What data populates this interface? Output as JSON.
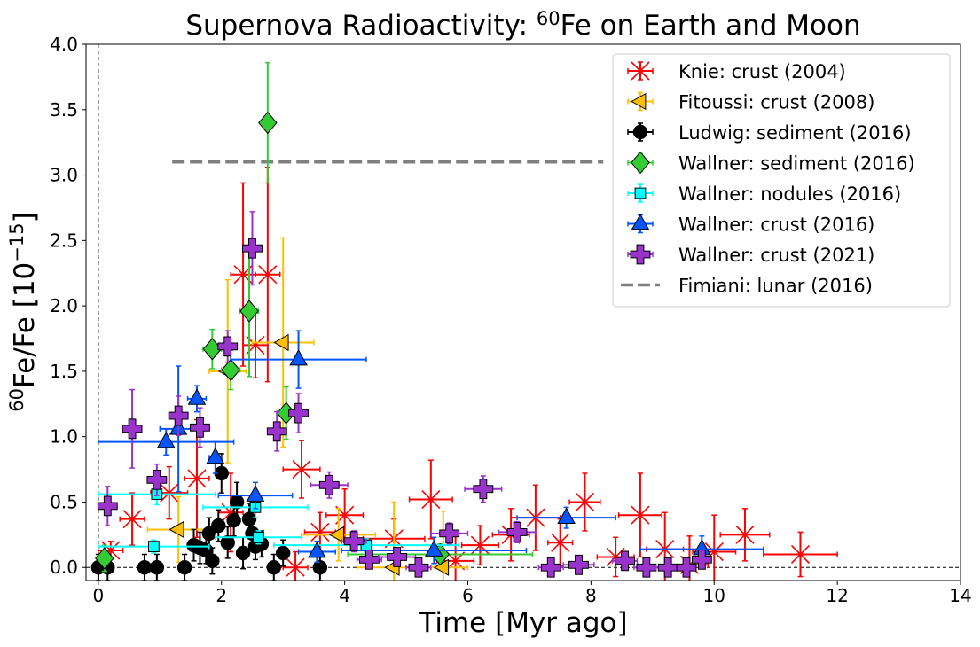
{
  "chart_data": {
    "type": "scatter",
    "title_main": "Supernova Radioactivity: ",
    "title_sup": "60",
    "title_rest": "Fe on Earth and Moon",
    "xlabel": "Time [Myr ago]",
    "ylabel_sup": "60",
    "ylabel_main": "Fe/Fe  [10",
    "ylabel_exp": "−15",
    "ylabel_end": "]",
    "xlim": [
      -0.2,
      14
    ],
    "ylim": [
      -0.1,
      4.0
    ],
    "xticks": [
      0,
      2,
      4,
      6,
      8,
      10,
      12,
      14
    ],
    "yticks": [
      0.0,
      0.5,
      1.0,
      1.5,
      2.0,
      2.5,
      3.0,
      3.5,
      4.0
    ],
    "xtick_labels": [
      "0",
      "2",
      "4",
      "6",
      "8",
      "10",
      "12",
      "14"
    ],
    "ytick_labels": [
      "0.0",
      "0.5",
      "1.0",
      "1.5",
      "2.0",
      "2.5",
      "3.0",
      "3.5",
      "4.0"
    ],
    "legend_position": "top-right",
    "reference_lines": {
      "x": 0,
      "y": 0
    },
    "series": [
      {
        "name": "Knie: crust (2004)",
        "marker": "x",
        "color": "#ff0000",
        "points": [
          {
            "x": 0.2,
            "y": 0.13,
            "xerr": 0.2,
            "yerr": 0.07
          },
          {
            "x": 0.55,
            "y": 0.37,
            "xerr": 0.2,
            "yerr": 0.2
          },
          {
            "x": 1.15,
            "y": 0.57,
            "xerr": 0.3,
            "yerr": 0.2
          },
          {
            "x": 1.6,
            "y": 0.68,
            "xerr": 0.2,
            "yerr": 0.45
          },
          {
            "x": 2.15,
            "y": 0.42,
            "xerr": 0.2,
            "yerr": 0.3
          },
          {
            "x": 2.35,
            "y": 2.24,
            "xerr": 0.2,
            "yerr": 0.7
          },
          {
            "x": 2.55,
            "y": 1.7,
            "xerr": 0.2,
            "yerr": 0.25
          },
          {
            "x": 2.75,
            "y": 2.24,
            "xerr": 0.2,
            "yerr": 0.82
          },
          {
            "x": 3.2,
            "y": 0.0,
            "xerr": 0.2,
            "yerr": 0.12
          },
          {
            "x": 3.3,
            "y": 0.75,
            "xerr": 0.3,
            "yerr": 0.22
          },
          {
            "x": 3.6,
            "y": 0.27,
            "xerr": 0.25,
            "yerr": 0.15
          },
          {
            "x": 4.0,
            "y": 0.4,
            "xerr": 0.3,
            "yerr": 0.2
          },
          {
            "x": 4.8,
            "y": 0.22,
            "xerr": 0.5,
            "yerr": 0.15
          },
          {
            "x": 5.4,
            "y": 0.52,
            "xerr": 0.35,
            "yerr": 0.3
          },
          {
            "x": 5.8,
            "y": 0.05,
            "xerr": 0.3,
            "yerr": 0.2
          },
          {
            "x": 6.2,
            "y": 0.17,
            "xerr": 0.3,
            "yerr": 0.15
          },
          {
            "x": 6.7,
            "y": 0.25,
            "xerr": 0.3,
            "yerr": 0.2
          },
          {
            "x": 7.1,
            "y": 0.38,
            "xerr": 0.4,
            "yerr": 0.25
          },
          {
            "x": 7.5,
            "y": 0.19,
            "xerr": 0.2,
            "yerr": 0.18
          },
          {
            "x": 7.9,
            "y": 0.5,
            "xerr": 0.25,
            "yerr": 0.22
          },
          {
            "x": 8.4,
            "y": 0.08,
            "xerr": 0.3,
            "yerr": 0.15
          },
          {
            "x": 8.8,
            "y": 0.4,
            "xerr": 0.35,
            "yerr": 0.32
          },
          {
            "x": 9.2,
            "y": 0.14,
            "xerr": 0.3,
            "yerr": 0.28
          },
          {
            "x": 9.6,
            "y": 0.02,
            "xerr": 0.3,
            "yerr": 0.22
          },
          {
            "x": 10.0,
            "y": 0.12,
            "xerr": 0.35,
            "yerr": 0.28
          },
          {
            "x": 10.5,
            "y": 0.25,
            "xerr": 0.4,
            "yerr": 0.2
          },
          {
            "x": 11.4,
            "y": 0.1,
            "xerr": 0.6,
            "yerr": 0.17
          }
        ]
      },
      {
        "name": "Fitoussi: crust (2008)",
        "marker": "triangle-left",
        "color": "#ffbf00",
        "points": [
          {
            "x": 1.3,
            "y": 0.29,
            "xerr": 0.5,
            "yerr": 0.25
          },
          {
            "x": 2.1,
            "y": 1.5,
            "xerr": 0.3,
            "yerr": 0.7
          },
          {
            "x": 3.0,
            "y": 1.72,
            "xerr": 0.5,
            "yerr": 0.8
          },
          {
            "x": 3.9,
            "y": 0.25,
            "xerr": 0.6,
            "yerr": 0.2
          },
          {
            "x": 4.8,
            "y": 0.0,
            "xerr": 0.6,
            "yerr": 0.5
          },
          {
            "x": 5.6,
            "y": 0.0,
            "xerr": 0.4,
            "yerr": 0.43
          }
        ]
      },
      {
        "name": "Ludwig: sediment (2016)",
        "marker": "circle",
        "color": "#000000",
        "points": [
          {
            "x": 0.0,
            "y": 0.0,
            "xerr": 0.05,
            "yerr": 0.1
          },
          {
            "x": 0.15,
            "y": 0.0,
            "xerr": 0.05,
            "yerr": 0.1
          },
          {
            "x": 0.75,
            "y": 0.0,
            "xerr": 0.05,
            "yerr": 0.1
          },
          {
            "x": 0.95,
            "y": 0.0,
            "xerr": 0.05,
            "yerr": 0.1
          },
          {
            "x": 1.4,
            "y": 0.0,
            "xerr": 0.05,
            "yerr": 0.1
          },
          {
            "x": 1.55,
            "y": 0.17,
            "xerr": 0.05,
            "yerr": 0.12
          },
          {
            "x": 1.65,
            "y": 0.15,
            "xerr": 0.05,
            "yerr": 0.12
          },
          {
            "x": 1.75,
            "y": 0.13,
            "xerr": 0.05,
            "yerr": 0.1
          },
          {
            "x": 1.8,
            "y": 0.26,
            "xerr": 0.05,
            "yerr": 0.12
          },
          {
            "x": 1.85,
            "y": 0.05,
            "xerr": 0.05,
            "yerr": 0.1
          },
          {
            "x": 1.95,
            "y": 0.32,
            "xerr": 0.05,
            "yerr": 0.12
          },
          {
            "x": 2.0,
            "y": 0.72,
            "xerr": 0.05,
            "yerr": 0.15
          },
          {
            "x": 2.1,
            "y": 0.19,
            "xerr": 0.05,
            "yerr": 0.12
          },
          {
            "x": 2.2,
            "y": 0.36,
            "xerr": 0.05,
            "yerr": 0.12
          },
          {
            "x": 2.25,
            "y": 0.5,
            "xerr": 0.05,
            "yerr": 0.15
          },
          {
            "x": 2.35,
            "y": 0.11,
            "xerr": 0.05,
            "yerr": 0.12
          },
          {
            "x": 2.45,
            "y": 0.37,
            "xerr": 0.05,
            "yerr": 0.12
          },
          {
            "x": 2.5,
            "y": 0.26,
            "xerr": 0.05,
            "yerr": 0.12
          },
          {
            "x": 2.55,
            "y": 0.16,
            "xerr": 0.05,
            "yerr": 0.1
          },
          {
            "x": 2.65,
            "y": 0.18,
            "xerr": 0.05,
            "yerr": 0.1
          },
          {
            "x": 2.85,
            "y": 0.0,
            "xerr": 0.05,
            "yerr": 0.1
          },
          {
            "x": 3.0,
            "y": 0.11,
            "xerr": 0.05,
            "yerr": 0.1
          },
          {
            "x": 3.6,
            "y": 0.0,
            "xerr": 0.05,
            "yerr": 0.1
          }
        ]
      },
      {
        "name": "Wallner: sediment (2016)",
        "marker": "diamond",
        "color": "#33cc33",
        "points": [
          {
            "x": 0.1,
            "y": 0.07,
            "xerr": 0.1,
            "yerr": 0.1
          },
          {
            "x": 1.85,
            "y": 1.67,
            "xerr": 0.15,
            "yerr": 0.15
          },
          {
            "x": 2.15,
            "y": 1.51,
            "xerr": 0.15,
            "yerr": 0.15
          },
          {
            "x": 2.45,
            "y": 1.96,
            "xerr": 0.15,
            "yerr": 0.5
          },
          {
            "x": 2.75,
            "y": 3.4,
            "xerr": 0.1,
            "yerr": 0.46
          },
          {
            "x": 3.05,
            "y": 1.18,
            "xerr": 0.15,
            "yerr": 0.2
          },
          {
            "x": 5.55,
            "y": 0.1,
            "xerr": 1.5,
            "yerr": 0.08
          }
        ]
      },
      {
        "name": "Wallner: nodules (2016)",
        "marker": "square",
        "color": "#00ffff",
        "points": [
          {
            "x": 0.9,
            "y": 0.16,
            "xerr": 0.9,
            "yerr": 0.05
          },
          {
            "x": 0.95,
            "y": 0.56,
            "xerr": 0.95,
            "yerr": 0.08
          },
          {
            "x": 2.55,
            "y": 0.46,
            "xerr": 0.85,
            "yerr": 0.08
          },
          {
            "x": 2.6,
            "y": 0.23,
            "xerr": 0.7,
            "yerr": 0.05
          },
          {
            "x": 4.35,
            "y": 0.17,
            "xerr": 1.5,
            "yerr": 0.05
          }
        ]
      },
      {
        "name": "Wallner: crust (2016)",
        "marker": "triangle-up",
        "color": "#0055ff",
        "points": [
          {
            "x": 1.1,
            "y": 0.96,
            "xerr": 1.1,
            "yerr": 0.1
          },
          {
            "x": 1.3,
            "y": 1.06,
            "xerr": 0.3,
            "yerr": 0.48
          },
          {
            "x": 1.6,
            "y": 1.29,
            "xerr": 0.15,
            "yerr": 0.1
          },
          {
            "x": 1.9,
            "y": 0.84,
            "xerr": 0.1,
            "yerr": 0.12
          },
          {
            "x": 2.55,
            "y": 0.55,
            "xerr": 0.6,
            "yerr": 0.1
          },
          {
            "x": 3.25,
            "y": 1.59,
            "xerr": 1.1,
            "yerr": 0.22
          },
          {
            "x": 3.55,
            "y": 0.12,
            "xerr": 0.3,
            "yerr": 0.08
          },
          {
            "x": 5.45,
            "y": 0.13,
            "xerr": 1.5,
            "yerr": 0.1
          },
          {
            "x": 7.6,
            "y": 0.38,
            "xerr": 0.8,
            "yerr": 0.08
          },
          {
            "x": 9.8,
            "y": 0.14,
            "xerr": 1.0,
            "yerr": 0.1
          }
        ]
      },
      {
        "name": "Wallner: crust (2021)",
        "marker": "plus",
        "color": "#9933cc",
        "points": [
          {
            "x": 0.15,
            "y": 0.47,
            "xerr": 0.1,
            "yerr": 0.15
          },
          {
            "x": 0.55,
            "y": 1.06,
            "xerr": 0.15,
            "yerr": 0.3
          },
          {
            "x": 0.95,
            "y": 0.67,
            "xerr": 0.1,
            "yerr": 0.12
          },
          {
            "x": 1.3,
            "y": 1.16,
            "xerr": 0.15,
            "yerr": 0.15
          },
          {
            "x": 1.65,
            "y": 1.07,
            "xerr": 0.15,
            "yerr": 0.15
          },
          {
            "x": 2.1,
            "y": 1.69,
            "xerr": 0.15,
            "yerr": 0.12
          },
          {
            "x": 2.5,
            "y": 2.44,
            "xerr": 0.15,
            "yerr": 0.28
          },
          {
            "x": 2.9,
            "y": 1.04,
            "xerr": 0.15,
            "yerr": 0.15
          },
          {
            "x": 3.25,
            "y": 1.18,
            "xerr": 0.15,
            "yerr": 0.15
          },
          {
            "x": 3.75,
            "y": 0.63,
            "xerr": 0.3,
            "yerr": 0.1
          },
          {
            "x": 4.15,
            "y": 0.2,
            "xerr": 0.2,
            "yerr": 0.08
          },
          {
            "x": 4.4,
            "y": 0.06,
            "xerr": 0.2,
            "yerr": 0.05
          },
          {
            "x": 4.85,
            "y": 0.08,
            "xerr": 0.3,
            "yerr": 0.06
          },
          {
            "x": 5.2,
            "y": 0.0,
            "xerr": 0.2,
            "yerr": 0.04
          },
          {
            "x": 5.7,
            "y": 0.26,
            "xerr": 0.3,
            "yerr": 0.08
          },
          {
            "x": 6.25,
            "y": 0.6,
            "xerr": 0.3,
            "yerr": 0.1
          },
          {
            "x": 6.8,
            "y": 0.27,
            "xerr": 0.3,
            "yerr": 0.08
          },
          {
            "x": 7.35,
            "y": 0.0,
            "xerr": 0.2,
            "yerr": 0.04
          },
          {
            "x": 7.8,
            "y": 0.02,
            "xerr": 0.25,
            "yerr": 0.04
          },
          {
            "x": 8.55,
            "y": 0.05,
            "xerr": 0.2,
            "yerr": 0.04
          },
          {
            "x": 8.9,
            "y": 0.0,
            "xerr": 0.2,
            "yerr": 0.04
          },
          {
            "x": 9.25,
            "y": 0.0,
            "xerr": 0.2,
            "yerr": 0.04
          },
          {
            "x": 9.55,
            "y": 0.0,
            "xerr": 0.15,
            "yerr": 0.04
          },
          {
            "x": 9.8,
            "y": 0.06,
            "xerr": 0.15,
            "yerr": 0.04
          }
        ]
      }
    ],
    "fimiani": {
      "name": "Fimiani: lunar (2016)",
      "color": "#808080",
      "x": [
        1.2,
        8.2
      ],
      "y": 3.1
    }
  }
}
